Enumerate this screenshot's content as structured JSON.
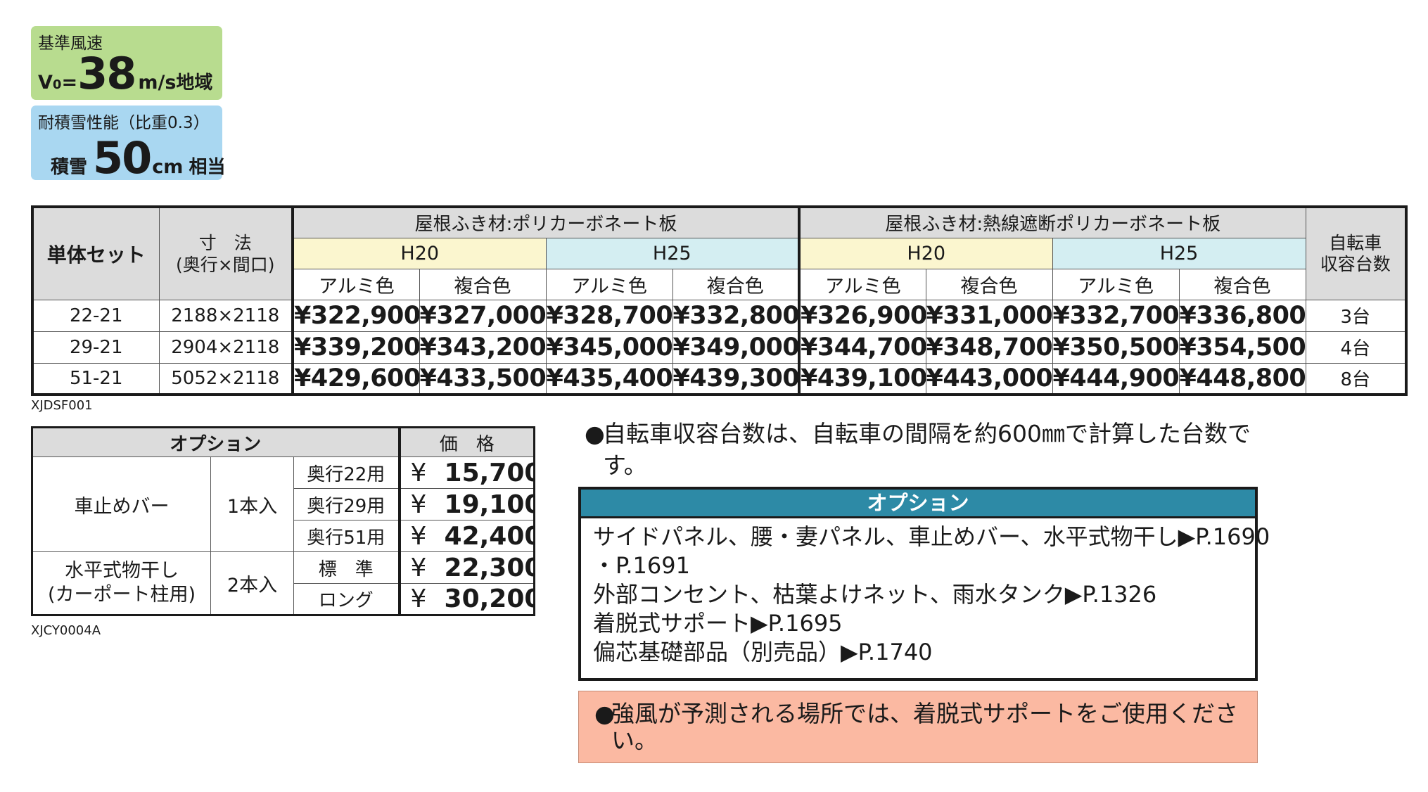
{
  "wind": {
    "label": "基準風速",
    "prefix": "V",
    "subscript": "0",
    "eq": "=",
    "value": "38",
    "unit": "m/s",
    "suffix": "地域"
  },
  "snow": {
    "label": "耐積雪性能（比重0.3）",
    "prefix": "積雪",
    "value": "50",
    "unit": "cm",
    "suffix": "相当"
  },
  "main_table": {
    "header_set": "単体セット",
    "header_dim_1": "寸　法",
    "header_dim_2": "(奥行×間口)",
    "group_a": "屋根ふき材:ポリカーボネート板",
    "group_b": "屋根ふき材:熱線遮断ポリカーボネート板",
    "h20": "H20",
    "h25": "H25",
    "color_alumi": "アルミ色",
    "color_fukugo": "複合色",
    "header_bike_1": "自転車",
    "header_bike_2": "収容台数",
    "rows": [
      {
        "code": "22-21",
        "size": "2188×2118",
        "prices": [
          "¥322,900",
          "¥327,000",
          "¥328,700",
          "¥332,800",
          "¥326,900",
          "¥331,000",
          "¥332,700",
          "¥336,800"
        ],
        "bikes": "3台"
      },
      {
        "code": "29-21",
        "size": "2904×2118",
        "prices": [
          "¥339,200",
          "¥343,200",
          "¥345,000",
          "¥349,000",
          "¥344,700",
          "¥348,700",
          "¥350,500",
          "¥354,500"
        ],
        "bikes": "4台"
      },
      {
        "code": "51-21",
        "size": "5052×2118",
        "prices": [
          "¥429,600",
          "¥433,500",
          "¥435,400",
          "¥439,300",
          "¥439,100",
          "¥443,000",
          "¥444,900",
          "¥448,800"
        ],
        "bikes": "8台"
      }
    ],
    "caption": "XJDSF001"
  },
  "option_table": {
    "header_option": "オプション",
    "header_price": "価　格",
    "item1_name": "車止めバー",
    "item1_qty": "1本入",
    "item1_rows": [
      {
        "sub": "奥行22用",
        "yen": "¥",
        "price": "15,700"
      },
      {
        "sub": "奥行29用",
        "yen": "¥",
        "price": "19,100"
      },
      {
        "sub": "奥行51用",
        "yen": "¥",
        "price": "42,400"
      }
    ],
    "item2_name_1": "水平式物干し",
    "item2_name_2": "(カーポート柱用)",
    "item2_qty": "2本入",
    "item2_rows": [
      {
        "sub": "標　準",
        "yen": "¥",
        "price": "22,300"
      },
      {
        "sub": "ロング",
        "yen": "¥",
        "price": "30,200"
      }
    ],
    "caption": "XJCY0004A"
  },
  "note1": {
    "bullet": "●",
    "text": "自転車収容台数は、自転車の間隔を約600㎜で計算した台数です。"
  },
  "option_box": {
    "title": "オプション",
    "lines": [
      "サイドパネル、腰・妻パネル、車止めバー、水平式物干し▶P.1690",
      "・P.1691",
      "外部コンセント、枯葉よけネット、雨水タンク▶P.1326",
      "着脱式サポート▶P.1695",
      "偏芯基礎部品（別売品）▶P.1740"
    ]
  },
  "note2": {
    "bullet": "●",
    "text": "強風が予測される場所では、着脱式サポートをご使用ください。"
  },
  "colors": {
    "wind_badge": "#b8dc8f",
    "snow_badge": "#a9d7f1",
    "header_gray": "#dcdcdc",
    "h20_yellow": "#fbf6cf",
    "h25_cyan": "#d4eef2",
    "option_title": "#2d8aa6",
    "warning_bg": "#fbb9a2"
  }
}
